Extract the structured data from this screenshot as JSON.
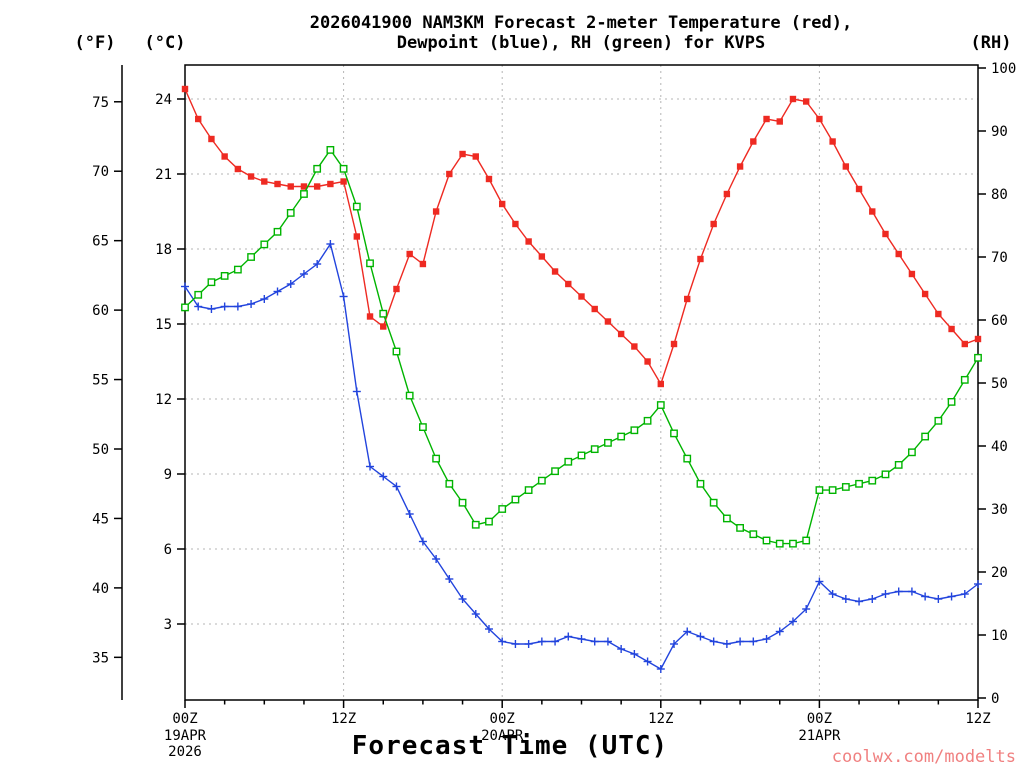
{
  "title": {
    "line1": "2026041900 NAM3KM Forecast 2-meter Temperature (red),",
    "line2": "Dewpoint (blue), RH (green) for KVPS"
  },
  "axes": {
    "left_f_unit": "(°F)",
    "left_c_unit": "(°C)",
    "right_rh_unit": "(RH)",
    "f_ticks": [
      75,
      70,
      65,
      60,
      55,
      50,
      45,
      40,
      35
    ],
    "c_ticks": [
      24,
      21,
      18,
      15,
      12,
      9,
      6,
      3
    ],
    "rh_ticks": [
      100,
      90,
      80,
      70,
      60,
      50,
      40,
      30,
      20,
      10,
      0
    ],
    "x_ticks": [
      {
        "hour": 0,
        "label": "00Z"
      },
      {
        "hour": 12,
        "label": "12Z"
      },
      {
        "hour": 24,
        "label": "00Z"
      },
      {
        "hour": 36,
        "label": "12Z"
      },
      {
        "hour": 48,
        "label": "00Z"
      },
      {
        "hour": 60,
        "label": "12Z"
      }
    ],
    "x_dates": [
      {
        "hour": 0,
        "line1": "19APR",
        "line2": "2026"
      },
      {
        "hour": 24,
        "line1": "20APR"
      },
      {
        "hour": 48,
        "line1": "21APR"
      }
    ],
    "xlabel": "Forecast Time (UTC)"
  },
  "watermark": {
    "text": "coolwx.com/modelts",
    "color": "#f08080"
  },
  "chart_data": {
    "type": "line",
    "title": "2026041900 NAM3KM Forecast 2-meter Temperature (red), Dewpoint (blue), RH (green) for KVPS",
    "xlabel": "Forecast Time (UTC)",
    "x_hours_range": [
      0,
      60
    ],
    "x_tick_labels": [
      "00Z",
      "12Z",
      "00Z",
      "12Z",
      "00Z",
      "12Z"
    ],
    "x_dates": [
      "19APR 2026",
      "20APR",
      "21APR"
    ],
    "y_left_label": "Temperature / Dewpoint (°C)",
    "y_left_range_c": [
      0,
      25.4
    ],
    "y_left_secondary_label": "(°F)",
    "y_right_label": "RH (%)",
    "y_right_range": [
      0,
      100
    ],
    "grid": "dotted",
    "legend_position": "in-title",
    "series": [
      {
        "id": "temperature",
        "name": "2-meter Temperature",
        "unit": "°C",
        "axis": "left",
        "color": "#ee2a22",
        "marker": "filled-square",
        "values": [
          24.4,
          23.2,
          22.4,
          21.7,
          21.2,
          20.9,
          20.7,
          20.6,
          20.5,
          20.5,
          20.5,
          20.6,
          20.7,
          18.5,
          15.3,
          14.9,
          16.4,
          17.8,
          17.4,
          19.5,
          21.0,
          21.8,
          21.7,
          20.8,
          19.8,
          19.0,
          18.3,
          17.7,
          17.1,
          16.6,
          16.1,
          15.6,
          15.1,
          14.6,
          14.1,
          13.5,
          12.6,
          14.2,
          16.0,
          17.6,
          19.0,
          20.2,
          21.3,
          22.3,
          23.2,
          23.1,
          24.0,
          23.9,
          23.2,
          22.3,
          21.3,
          20.4,
          19.5,
          18.6,
          17.8,
          17.0,
          16.2,
          15.4,
          14.8,
          14.2,
          14.4
        ]
      },
      {
        "id": "dewpoint",
        "name": "2-meter Dewpoint",
        "unit": "°C",
        "axis": "left",
        "color": "#2244dd",
        "marker": "plus",
        "values": [
          16.5,
          15.7,
          15.6,
          15.7,
          15.7,
          15.8,
          16.0,
          16.3,
          16.6,
          17.0,
          17.4,
          18.2,
          16.1,
          12.3,
          9.3,
          8.9,
          8.5,
          7.4,
          6.3,
          5.6,
          4.8,
          4.0,
          3.4,
          2.8,
          2.3,
          2.2,
          2.2,
          2.3,
          2.3,
          2.5,
          2.4,
          2.3,
          2.3,
          2.0,
          1.8,
          1.5,
          1.2,
          2.2,
          2.7,
          2.5,
          2.3,
          2.2,
          2.3,
          2.3,
          2.4,
          2.7,
          3.1,
          3.6,
          4.7,
          4.2,
          4.0,
          3.9,
          4.0,
          4.2,
          4.3,
          4.3,
          4.1,
          4.0,
          4.1,
          4.2,
          4.6
        ]
      },
      {
        "id": "rh",
        "name": "Relative Humidity",
        "unit": "%",
        "axis": "right",
        "color": "#00b400",
        "marker": "open-square",
        "values": [
          62,
          64,
          66,
          67,
          68,
          70,
          72,
          74,
          77,
          80,
          84,
          87,
          84,
          78,
          69,
          61,
          55,
          48,
          43,
          38,
          34,
          31,
          27.5,
          28,
          30,
          31.5,
          33,
          34.5,
          36,
          37.5,
          38.5,
          39.5,
          40.5,
          41.5,
          42.5,
          44,
          46.5,
          42,
          38,
          34,
          31,
          28.5,
          27,
          26,
          25,
          24.5,
          24.5,
          25,
          33,
          33,
          33.5,
          34,
          34.5,
          35.5,
          37,
          39,
          41.5,
          44,
          47,
          50.5,
          54
        ]
      }
    ]
  }
}
